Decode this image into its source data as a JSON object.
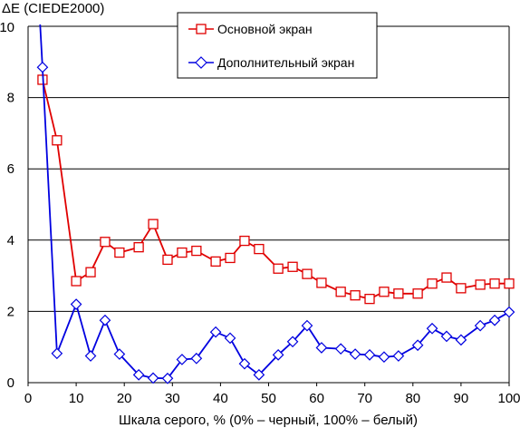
{
  "chart_data": {
    "type": "line",
    "ylabel": "ΔE (CIEDE2000)",
    "xlabel": "Шкала серого, % (0% – черный, 100% – белый)",
    "xlim": [
      0,
      100
    ],
    "ylim": [
      0,
      10
    ],
    "x_ticks": [
      "0",
      "10",
      "20",
      "30",
      "40",
      "50",
      "60",
      "70",
      "80",
      "90",
      "100"
    ],
    "y_ticks": [
      "0",
      "2",
      "4",
      "6",
      "8",
      "10"
    ],
    "grid": "horizontal",
    "legend_position": "top-center",
    "x": [
      3,
      6,
      10,
      13,
      16,
      19,
      23,
      26,
      29,
      32,
      35,
      39,
      42,
      45,
      48,
      52,
      55,
      58,
      61,
      65,
      68,
      71,
      74,
      77,
      81,
      84,
      87,
      90,
      94,
      97,
      100
    ],
    "series": [
      {
        "name": "Основной экран",
        "color": "#e00000",
        "marker": "square",
        "values": [
          8.5,
          6.8,
          2.85,
          3.1,
          3.95,
          3.65,
          3.8,
          4.45,
          3.45,
          3.65,
          3.7,
          3.4,
          3.5,
          3.98,
          3.75,
          3.2,
          3.25,
          3.05,
          2.8,
          2.55,
          2.45,
          2.35,
          2.55,
          2.5,
          2.5,
          2.78,
          2.95,
          2.65,
          2.75,
          2.78,
          2.78
        ]
      },
      {
        "name": "Дополнительный экран",
        "color": "#0000e0",
        "marker": "diamond",
        "start": [
          2.5,
          10.5
        ],
        "values": [
          8.85,
          0.82,
          2.2,
          0.75,
          1.75,
          0.8,
          0.22,
          0.13,
          0.12,
          0.65,
          0.68,
          1.42,
          1.25,
          0.53,
          0.22,
          0.78,
          1.15,
          1.6,
          0.98,
          0.95,
          0.8,
          0.78,
          0.72,
          0.75,
          1.05,
          1.52,
          1.3,
          1.2,
          1.6,
          1.75,
          1.98
        ]
      }
    ]
  }
}
